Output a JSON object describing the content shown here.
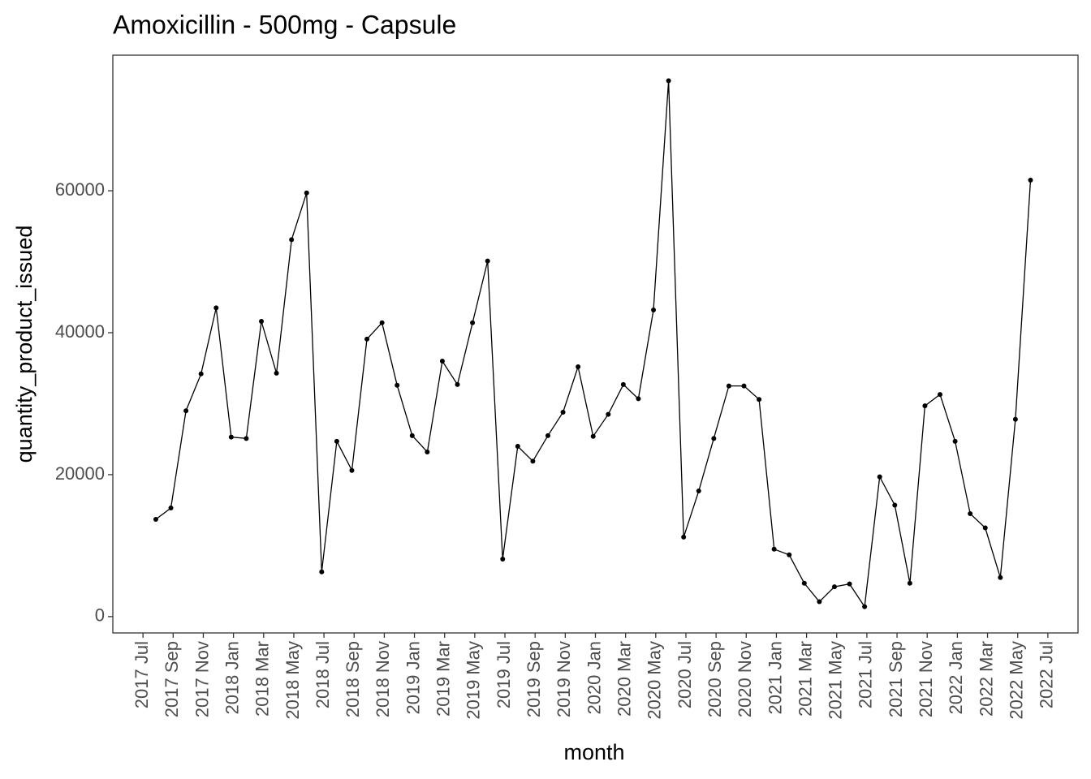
{
  "chart_data": {
    "type": "line",
    "title": "Amoxicillin - 500mg - Capsule",
    "x_label": "month",
    "y_label": "quantity_product_issued",
    "color": "#000000",
    "grid": false,
    "x": [
      "2017-07",
      "2017-08",
      "2017-09",
      "2017-10",
      "2017-11",
      "2017-12",
      "2018-01",
      "2018-02",
      "2018-03",
      "2018-04",
      "2018-05",
      "2018-06",
      "2018-07",
      "2018-08",
      "2018-09",
      "2018-10",
      "2018-11",
      "2018-12",
      "2019-01",
      "2019-02",
      "2019-03",
      "2019-04",
      "2019-05",
      "2019-06",
      "2019-07",
      "2019-08",
      "2019-09",
      "2019-10",
      "2019-11",
      "2019-12",
      "2020-01",
      "2020-02",
      "2020-03",
      "2020-04",
      "2020-05",
      "2020-06",
      "2020-07",
      "2020-08",
      "2020-09",
      "2020-10",
      "2020-11",
      "2020-12",
      "2021-01",
      "2021-02",
      "2021-03",
      "2021-04",
      "2021-05",
      "2021-06",
      "2021-07",
      "2021-08",
      "2021-09",
      "2021-10",
      "2021-11",
      "2021-12",
      "2022-01",
      "2022-02",
      "2022-03",
      "2022-04",
      "2022-05"
    ],
    "values": [
      13700,
      15300,
      29000,
      34200,
      43500,
      25300,
      25100,
      41600,
      34300,
      53100,
      59700,
      6300,
      24700,
      20600,
      39100,
      41400,
      32600,
      25500,
      23200,
      36000,
      32700,
      41400,
      50100,
      8100,
      24000,
      21900,
      25500,
      28800,
      35200,
      25400,
      28500,
      32700,
      30700,
      43200,
      75500,
      11200,
      17700,
      25100,
      32500,
      32500,
      30600,
      9500,
      8700,
      4700,
      2100,
      4200,
      4600,
      1400,
      19700,
      15700,
      4700,
      29700,
      31300,
      24700,
      14500,
      12500,
      5500,
      27800,
      61500
    ],
    "xlim": [
      "2017-05",
      "2022-09"
    ],
    "xticks": [
      {
        "value": "2017-07",
        "label": "2017 Jul"
      },
      {
        "value": "2017-09",
        "label": "2017 Sep"
      },
      {
        "value": "2017-11",
        "label": "2017 Nov"
      },
      {
        "value": "2018-01",
        "label": "2018 Jan"
      },
      {
        "value": "2018-03",
        "label": "2018 Mar"
      },
      {
        "value": "2018-05",
        "label": "2018 May"
      },
      {
        "value": "2018-07",
        "label": "2018 Jul"
      },
      {
        "value": "2018-09",
        "label": "2018 Sep"
      },
      {
        "value": "2018-11",
        "label": "2018 Nov"
      },
      {
        "value": "2019-01",
        "label": "2019 Jan"
      },
      {
        "value": "2019-03",
        "label": "2019 Mar"
      },
      {
        "value": "2019-05",
        "label": "2019 May"
      },
      {
        "value": "2019-07",
        "label": "2019 Jul"
      },
      {
        "value": "2019-09",
        "label": "2019 Sep"
      },
      {
        "value": "2019-11",
        "label": "2019 Nov"
      },
      {
        "value": "2020-01",
        "label": "2020 Jan"
      },
      {
        "value": "2020-03",
        "label": "2020 Mar"
      },
      {
        "value": "2020-05",
        "label": "2020 May"
      },
      {
        "value": "2020-07",
        "label": "2020 Jul"
      },
      {
        "value": "2020-09",
        "label": "2020 Sep"
      },
      {
        "value": "2020-11",
        "label": "2020 Nov"
      },
      {
        "value": "2021-01",
        "label": "2021 Jan"
      },
      {
        "value": "2021-03",
        "label": "2021 Mar"
      },
      {
        "value": "2021-05",
        "label": "2021 May"
      },
      {
        "value": "2021-07",
        "label": "2021 Jul"
      },
      {
        "value": "2021-09",
        "label": "2021 Sep"
      },
      {
        "value": "2021-11",
        "label": "2021 Nov"
      },
      {
        "value": "2022-01",
        "label": "2022 Jan"
      },
      {
        "value": "2022-03",
        "label": "2022 Mar"
      },
      {
        "value": "2022-05",
        "label": "2022 May"
      },
      {
        "value": "2022-07",
        "label": "2022 Jul"
      }
    ],
    "ylim": [
      -2300,
      79100
    ],
    "yticks": [
      0,
      20000,
      40000,
      60000
    ]
  }
}
